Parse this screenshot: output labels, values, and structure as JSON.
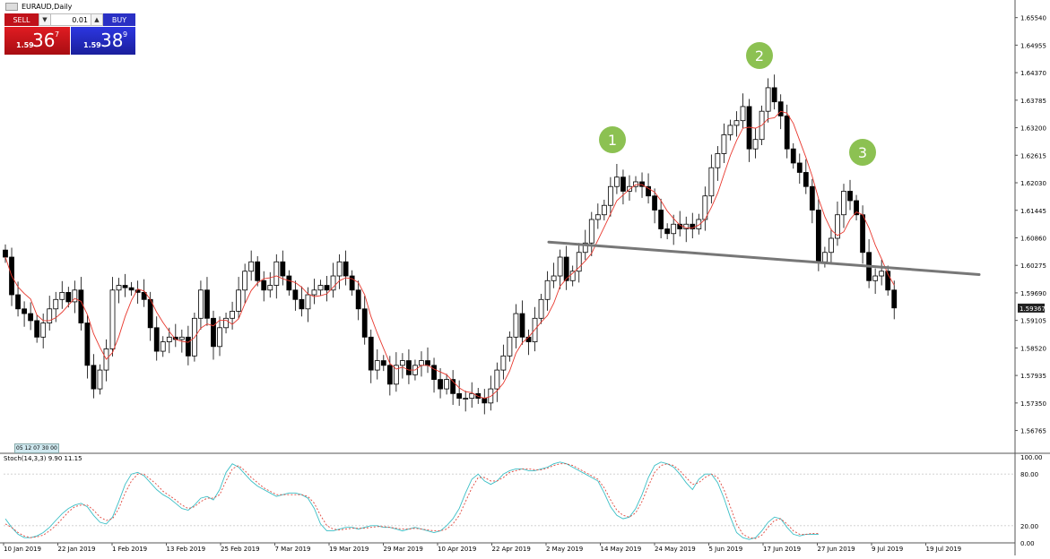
{
  "window": {
    "title": "EURAUD,Daily"
  },
  "trade_panel": {
    "sell_label": "SELL",
    "buy_label": "BUY",
    "lot_value": "0.01",
    "sell_price": {
      "small": "1.59",
      "big": "36",
      "sup": "7"
    },
    "buy_price": {
      "small": "1.59",
      "big": "38",
      "sup": "9"
    }
  },
  "oneclick_badge": "05 12 07 30 00",
  "colors": {
    "sell": "#c0121a",
    "buy": "#2a30c4",
    "ma": "#e8382e",
    "stoch_main": "#3bbfc6",
    "stoch_signal": "#e0463c",
    "neckline": "#777777",
    "marker": "#8cc152"
  },
  "chart_data": {
    "type": "candlestick",
    "symbol": "EURAUD",
    "timeframe": "Daily",
    "price_axis": {
      "ticks": [
        "1.65540",
        "1.64955",
        "1.64370",
        "1.63785",
        "1.63200",
        "1.62615",
        "1.62030",
        "1.61445",
        "1.60860",
        "1.60275",
        "1.59690",
        "1.59105",
        "1.58520",
        "1.57935",
        "1.57350",
        "1.56765"
      ],
      "range": [
        1.563,
        1.658
      ],
      "current_price": "1.59367"
    },
    "time_axis": [
      "10 Jan 2019",
      "22 Jan 2019",
      "1 Feb 2019",
      "13 Feb 2019",
      "25 Feb 2019",
      "7 Mar 2019",
      "19 Mar 2019",
      "29 Mar 2019",
      "10 Apr 2019",
      "22 Apr 2019",
      "2 May 2019",
      "14 May 2019",
      "24 May 2019",
      "5 Jun 2019",
      "17 Jun 2019",
      "27 Jun 2019",
      "9 Jul 2019",
      "19 Jul 2019"
    ],
    "close": [
      1.6045,
      1.5965,
      1.5935,
      1.5925,
      1.591,
      1.5875,
      1.5905,
      1.5935,
      1.5955,
      1.597,
      1.595,
      1.5975,
      1.5905,
      1.5815,
      1.5765,
      1.5805,
      1.585,
      1.5975,
      1.5985,
      1.598,
      1.5975,
      1.597,
      1.5955,
      1.5895,
      1.5845,
      1.5865,
      1.5875,
      1.587,
      1.5875,
      1.5835,
      1.5915,
      1.5975,
      1.5915,
      1.5855,
      1.5895,
      1.5915,
      1.593,
      1.5975,
      1.6015,
      1.6035,
      1.5995,
      1.5975,
      1.5985,
      1.6035,
      1.6005,
      1.5975,
      1.5955,
      1.5935,
      1.5965,
      1.5975,
      1.5985,
      1.5975,
      1.6005,
      1.6035,
      1.6005,
      1.5975,
      1.5935,
      1.5875,
      1.5805,
      1.5825,
      1.5815,
      1.5775,
      1.5815,
      1.5825,
      1.5795,
      1.5815,
      1.5825,
      1.5815,
      1.5785,
      1.5765,
      1.5785,
      1.5755,
      1.5745,
      1.5745,
      1.5755,
      1.5745,
      1.5735,
      1.5765,
      1.5805,
      1.5835,
      1.5875,
      1.5925,
      1.5875,
      1.5865,
      1.5915,
      1.5955,
      1.5995,
      1.6005,
      1.6045,
      1.5995,
      1.6015,
      1.6055,
      1.6075,
      1.6125,
      1.6135,
      1.6155,
      1.6195,
      1.6215,
      1.6185,
      1.6195,
      1.6205,
      1.6195,
      1.6175,
      1.6145,
      1.6105,
      1.6095,
      1.6115,
      1.6105,
      1.6115,
      1.6105,
      1.6125,
      1.6175,
      1.6235,
      1.6265,
      1.6305,
      1.6325,
      1.6335,
      1.6365,
      1.6275,
      1.6295,
      1.6355,
      1.6405,
      1.6375,
      1.6345,
      1.6275,
      1.6245,
      1.6225,
      1.6195,
      1.6145,
      1.6035,
      1.6055,
      1.6085,
      1.6135,
      1.6185,
      1.6165,
      1.6135,
      1.6055,
      1.5995,
      1.6005,
      1.6015,
      1.5975,
      1.5937
    ],
    "overlay": {
      "type": "moving average",
      "color": "red"
    },
    "annotations": [
      {
        "type": "numbered-marker",
        "label": "1"
      },
      {
        "type": "numbered-marker",
        "label": "2"
      },
      {
        "type": "numbered-marker",
        "label": "3"
      },
      {
        "type": "trend-line",
        "name": "neckline",
        "from_price": 1.6077,
        "to_price": 1.6008
      }
    ],
    "indicator": {
      "label": "Stoch(14,3,3) 9.90 11.15",
      "axis_ticks": [
        "100.00",
        "80.00",
        "20.00",
        "0.00"
      ],
      "range": [
        0,
        100
      ],
      "levels": [
        80,
        20
      ],
      "main": [
        28,
        18,
        10,
        6,
        6,
        8,
        12,
        18,
        26,
        34,
        40,
        44,
        46,
        42,
        32,
        24,
        22,
        30,
        48,
        68,
        80,
        82,
        78,
        70,
        62,
        56,
        52,
        46,
        40,
        38,
        44,
        52,
        54,
        50,
        62,
        82,
        92,
        88,
        80,
        72,
        66,
        62,
        58,
        54,
        56,
        58,
        58,
        56,
        52,
        40,
        22,
        14,
        14,
        16,
        18,
        18,
        16,
        18,
        20,
        20,
        18,
        18,
        16,
        14,
        16,
        18,
        16,
        14,
        12,
        14,
        20,
        28,
        40,
        58,
        74,
        80,
        72,
        68,
        72,
        80,
        84,
        86,
        86,
        84,
        84,
        86,
        88,
        92,
        94,
        92,
        88,
        84,
        80,
        76,
        72,
        58,
        42,
        32,
        28,
        30,
        40,
        56,
        76,
        90,
        94,
        92,
        88,
        80,
        70,
        62,
        74,
        80,
        80,
        70,
        52,
        30,
        12,
        6,
        4,
        6,
        14,
        24,
        30,
        28,
        18,
        10,
        8,
        10,
        10,
        10
      ],
      "signal": [
        22,
        18,
        12,
        8,
        6,
        7,
        9,
        14,
        20,
        28,
        36,
        42,
        44,
        44,
        38,
        30,
        26,
        28,
        40,
        58,
        72,
        80,
        80,
        74,
        68,
        60,
        55,
        50,
        44,
        40,
        42,
        48,
        52,
        52,
        56,
        72,
        86,
        90,
        84,
        76,
        70,
        64,
        60,
        56,
        56,
        56,
        56,
        56,
        54,
        46,
        32,
        20,
        16,
        15,
        16,
        17,
        17,
        17,
        18,
        19,
        19,
        18,
        17,
        16,
        16,
        17,
        16,
        15,
        14,
        14,
        16,
        22,
        32,
        48,
        64,
        76,
        76,
        72,
        72,
        76,
        82,
        84,
        86,
        86,
        85,
        85,
        87,
        90,
        92,
        92,
        90,
        86,
        82,
        78,
        74,
        64,
        50,
        38,
        32,
        30,
        35,
        48,
        66,
        82,
        90,
        92,
        90,
        84,
        76,
        68,
        70,
        76,
        80,
        76,
        62,
        42,
        22,
        10,
        6,
        5,
        9,
        18,
        26,
        28,
        22,
        14,
        10,
        10,
        11,
        11
      ]
    }
  }
}
